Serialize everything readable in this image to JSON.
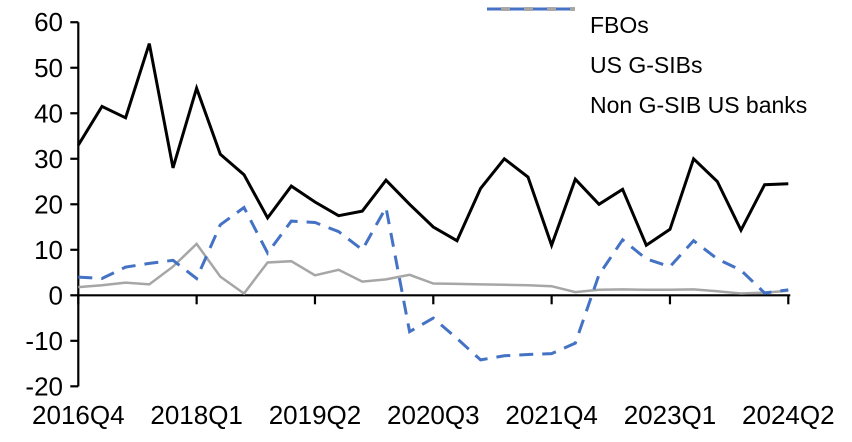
{
  "chart_data": {
    "type": "line",
    "n_points": 31,
    "x_start_label": "2016Q4",
    "x_tick_labels": [
      "2016Q4",
      "2018Q1",
      "2019Q2",
      "2020Q3",
      "2021Q4",
      "2023Q1",
      "2024Q2"
    ],
    "x_tick_indices": [
      0,
      5,
      10,
      15,
      20,
      25,
      30
    ],
    "y_tick_labels": [
      "60",
      "50",
      "40",
      "30",
      "20",
      "10",
      "0",
      "-10",
      "-20"
    ],
    "y_tick_values": [
      60,
      50,
      40,
      30,
      20,
      10,
      0,
      -10,
      -20
    ],
    "ylim": [
      -20,
      60
    ],
    "grid": false,
    "legend_position": "top-right",
    "axis_color": "#000000",
    "series": [
      {
        "name": "FBOs",
        "color": "#000000",
        "style": "solid",
        "values": [
          33,
          41.5,
          39,
          55.3,
          28,
          45.5,
          31,
          26.5,
          17,
          24,
          20.5,
          17.5,
          18.5,
          25.3,
          20,
          15,
          12,
          23.5,
          30,
          26,
          11,
          25.5,
          20,
          23.3,
          11,
          14.5,
          30,
          25,
          14.3,
          24.3,
          24.5
        ]
      },
      {
        "name": "US G-SIBs",
        "color": "#A6A6A6",
        "style": "solid",
        "values": [
          1.8,
          2.2,
          2.8,
          2.4,
          6.3,
          11.3,
          4.1,
          0.4,
          7.2,
          7.5,
          4.4,
          5.6,
          3,
          3.5,
          4.5,
          2.6,
          2.5,
          2.4,
          2.3,
          2.2,
          2,
          0.7,
          1.2,
          1.3,
          1.2,
          1.2,
          1.3,
          0.9,
          0.4,
          0.6,
          1
        ]
      },
      {
        "name": "Non G-SIB US banks",
        "color": "#4472C4",
        "style": "dashed",
        "values": [
          4,
          3.7,
          6.2,
          7,
          7.7,
          3.7,
          15.5,
          19.3,
          9.3,
          16.3,
          16,
          14,
          10,
          19.3,
          -8,
          -5,
          -9.5,
          -14.2,
          -13.3,
          -13,
          -12.8,
          -10.5,
          4.5,
          12.2,
          8,
          6.3,
          12,
          8,
          5.5,
          0.5,
          1.2
        ]
      }
    ]
  }
}
